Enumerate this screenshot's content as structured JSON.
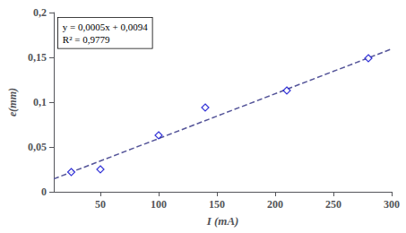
{
  "chart_data": {
    "type": "scatter",
    "xlabel": "I (mA)",
    "ylabel": "e(mm)",
    "series": [
      {
        "type": "scatter",
        "x": [
          25,
          50,
          100,
          140,
          210,
          280
        ],
        "values": [
          0.022,
          0.025,
          0.063,
          0.094,
          0.113,
          0.149
        ],
        "color": "#0000cd",
        "marker": "diamond"
      },
      {
        "type": "line",
        "x": [
          10,
          300
        ],
        "values": [
          0.0144,
          0.1594
        ],
        "color": "#555599",
        "line_style": "dashed"
      }
    ],
    "xlim": [
      10,
      300
    ],
    "ylim": [
      0,
      0.2
    ],
    "xticks": [
      50,
      100,
      150,
      200,
      250,
      300
    ],
    "yticks": [
      {
        "value": 0,
        "label": "0"
      },
      {
        "value": 0.05,
        "label": "0,05"
      },
      {
        "value": 0.1,
        "label": "0,1"
      },
      {
        "value": 0.15,
        "label": "0,15"
      },
      {
        "value": 0.2,
        "label": "0,2"
      }
    ],
    "annotations": [
      "y = 0,0005x + 0,0094",
      "R² = 0,9779"
    ],
    "grid": false
  }
}
